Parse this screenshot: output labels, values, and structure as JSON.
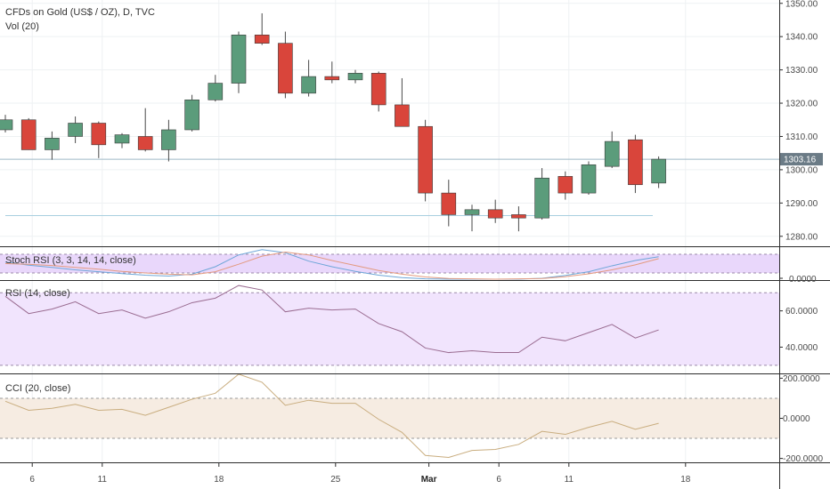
{
  "header": {
    "symbol": "CFDs on Gold (US$ / OZ), D, TVC",
    "volume": "Vol (20)"
  },
  "colors": {
    "up": "#5b9c7b",
    "down": "#d9453b",
    "grid": "#eef1f3",
    "stoch_band": "#e9d7fb",
    "rsi_band": "#f1e4fd",
    "cci_band": "#f6ece2",
    "rsi_line": "#9a6c91",
    "cci_line": "#c9ad7f",
    "stoch_k": "#6ea6d8",
    "stoch_d": "#e39a80",
    "price_line": "#9fb9c6",
    "price_tag": "#6b7b86"
  },
  "chart_data": [
    {
      "type": "candlestick",
      "title": "CFDs on Gold (US$ / OZ), D, TVC",
      "ylim": [
        1277,
        1351
      ],
      "yticks": [
        "1350.00",
        "1340.00",
        "1330.00",
        "1320.00",
        "1310.00",
        "1300.00",
        "1290.00",
        "1280.00"
      ],
      "last_price": "1303.16",
      "x_tick_labels": [
        {
          "label": "6",
          "index": 1
        },
        {
          "label": "11",
          "index": 4
        },
        {
          "label": "18",
          "index": 9
        },
        {
          "label": "25",
          "index": 14
        },
        {
          "label": "Mar",
          "index": 18,
          "bold": true
        },
        {
          "label": "6",
          "index": 21
        },
        {
          "label": "11",
          "index": 24
        },
        {
          "label": "18",
          "index": 29
        }
      ],
      "candles": [
        {
          "open": 1312.0,
          "high": 1316.5,
          "low": 1311.2,
          "close": 1315.0
        },
        {
          "open": 1315.0,
          "high": 1315.5,
          "low": 1306.0,
          "close": 1306.0
        },
        {
          "open": 1306.0,
          "high": 1311.5,
          "low": 1303.0,
          "close": 1309.5
        },
        {
          "open": 1310.0,
          "high": 1316.0,
          "low": 1308.0,
          "close": 1314.0
        },
        {
          "open": 1314.0,
          "high": 1314.5,
          "low": 1303.5,
          "close": 1307.5
        },
        {
          "open": 1308.0,
          "high": 1311.0,
          "low": 1306.5,
          "close": 1310.5
        },
        {
          "open": 1310.0,
          "high": 1318.5,
          "low": 1305.5,
          "close": 1306.0
        },
        {
          "open": 1306.0,
          "high": 1315.0,
          "low": 1302.5,
          "close": 1312.0
        },
        {
          "open": 1312.0,
          "high": 1322.5,
          "low": 1311.5,
          "close": 1321.0
        },
        {
          "open": 1321.0,
          "high": 1328.5,
          "low": 1320.5,
          "close": 1326.0
        },
        {
          "open": 1326.0,
          "high": 1341.5,
          "low": 1323.0,
          "close": 1340.5
        },
        {
          "open": 1340.5,
          "high": 1347.0,
          "low": 1337.5,
          "close": 1338.0
        },
        {
          "open": 1338.0,
          "high": 1341.5,
          "low": 1321.5,
          "close": 1323.0
        },
        {
          "open": 1323.0,
          "high": 1333.0,
          "low": 1322.0,
          "close": 1328.0
        },
        {
          "open": 1328.0,
          "high": 1332.5,
          "low": 1326.0,
          "close": 1327.0
        },
        {
          "open": 1327.0,
          "high": 1330.0,
          "low": 1326.0,
          "close": 1329.0
        },
        {
          "open": 1329.0,
          "high": 1329.5,
          "low": 1317.5,
          "close": 1319.5
        },
        {
          "open": 1319.5,
          "high": 1327.5,
          "low": 1313.0,
          "close": 1313.0
        },
        {
          "open": 1313.0,
          "high": 1315.0,
          "low": 1290.5,
          "close": 1293.0
        },
        {
          "open": 1293.0,
          "high": 1297.0,
          "low": 1283.0,
          "close": 1286.5
        },
        {
          "open": 1286.5,
          "high": 1289.5,
          "low": 1281.5,
          "close": 1288.0
        },
        {
          "open": 1288.0,
          "high": 1291.0,
          "low": 1284.0,
          "close": 1285.5
        },
        {
          "open": 1286.5,
          "high": 1289.0,
          "low": 1281.5,
          "close": 1285.5
        },
        {
          "open": 1285.5,
          "high": 1300.5,
          "low": 1285.0,
          "close": 1297.5
        },
        {
          "open": 1298.0,
          "high": 1299.5,
          "low": 1291.0,
          "close": 1293.0
        },
        {
          "open": 1293.0,
          "high": 1302.5,
          "low": 1292.5,
          "close": 1301.5
        },
        {
          "open": 1301.0,
          "high": 1311.5,
          "low": 1300.5,
          "close": 1308.5
        },
        {
          "open": 1309.0,
          "high": 1310.5,
          "low": 1293.0,
          "close": 1295.5
        },
        {
          "open": 1296.0,
          "high": 1304.0,
          "low": 1294.5,
          "close": 1303.16
        }
      ]
    },
    {
      "type": "line",
      "title": "Stoch RSI (3, 3, 14, 14, close)",
      "ytick": "0.0000",
      "ylim": [
        0,
        100
      ],
      "band": [
        20,
        80
      ],
      "series": [
        {
          "values": [
            55,
            45,
            38,
            30,
            24,
            18,
            13,
            10,
            16,
            40,
            78,
            95,
            85,
            58,
            40,
            25,
            13,
            5,
            1,
            0,
            0,
            0,
            0,
            3,
            12,
            24,
            43,
            60,
            72
          ]
        },
        {
          "values": [
            50,
            48,
            44,
            38,
            32,
            25,
            20,
            16,
            14,
            24,
            48,
            74,
            87,
            78,
            60,
            44,
            28,
            16,
            7,
            2,
            1,
            0,
            1,
            2,
            8,
            17,
            30,
            46,
            66
          ]
        }
      ]
    },
    {
      "type": "line",
      "title": "RSI (14, close)",
      "yticks": [
        "60.0000",
        "40.0000"
      ],
      "ylim": [
        26,
        76
      ],
      "band": [
        30,
        70
      ],
      "values": [
        68,
        58.5,
        61,
        65,
        58.5,
        60.5,
        56,
        59.5,
        64.5,
        67,
        74,
        71.5,
        59.5,
        61.5,
        60.5,
        61,
        53,
        48.5,
        39.5,
        37,
        38,
        37,
        37,
        45.5,
        43.5,
        48,
        52.5,
        45,
        49.5
      ]
    },
    {
      "type": "line",
      "title": "CCI (20, close)",
      "yticks": [
        "200.0000",
        "0.0000",
        "-200.0000"
      ],
      "ylim": [
        -215,
        215
      ],
      "band": [
        -100,
        100
      ],
      "values": [
        85,
        40,
        50,
        70,
        40,
        45,
        15,
        55,
        95,
        125,
        220,
        180,
        65,
        90,
        75,
        75,
        -5,
        -70,
        -185,
        -195,
        -160,
        -155,
        -130,
        -65,
        -80,
        -45,
        -15,
        -55,
        -25
      ]
    }
  ]
}
